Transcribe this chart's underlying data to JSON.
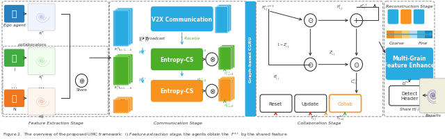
{
  "fig_width": 6.4,
  "fig_height": 2.01,
  "bg_color": "#ffffff",
  "caption": "Figure 2.  The overview of the proposed UMC framework:  i) Feature extraction stage, the agents obtain the  F^{e,t}  by the shared feature",
  "stage_labels": [
    "Feature Extraction Stage",
    "Communication Stage",
    "Collaboration Stage"
  ],
  "recon_stage_label": "Reconstruction Stage",
  "box_v2x": {
    "label": "V2X Communication",
    "fc": "#29aae1",
    "tc": "white"
  },
  "box_entropy1": {
    "label": "Entropy-CS",
    "fc": "#4daf27",
    "tc": "white"
  },
  "box_entropy2": {
    "label": "Entropy-CS",
    "fc": "#f7931e",
    "tc": "white"
  },
  "box_mgfe": {
    "label": "Multi-Grain\nFeature Enhance",
    "fc": "#29aae1",
    "tc": "white"
  },
  "box_detect": {
    "label": "Detect\nHeader",
    "fc": "white",
    "tc": "#333333"
  },
  "color_blue": "#29aae1",
  "color_green": "#4daf27",
  "color_orange": "#f7931e",
  "color_dark": "#333333",
  "color_gray": "#888888"
}
